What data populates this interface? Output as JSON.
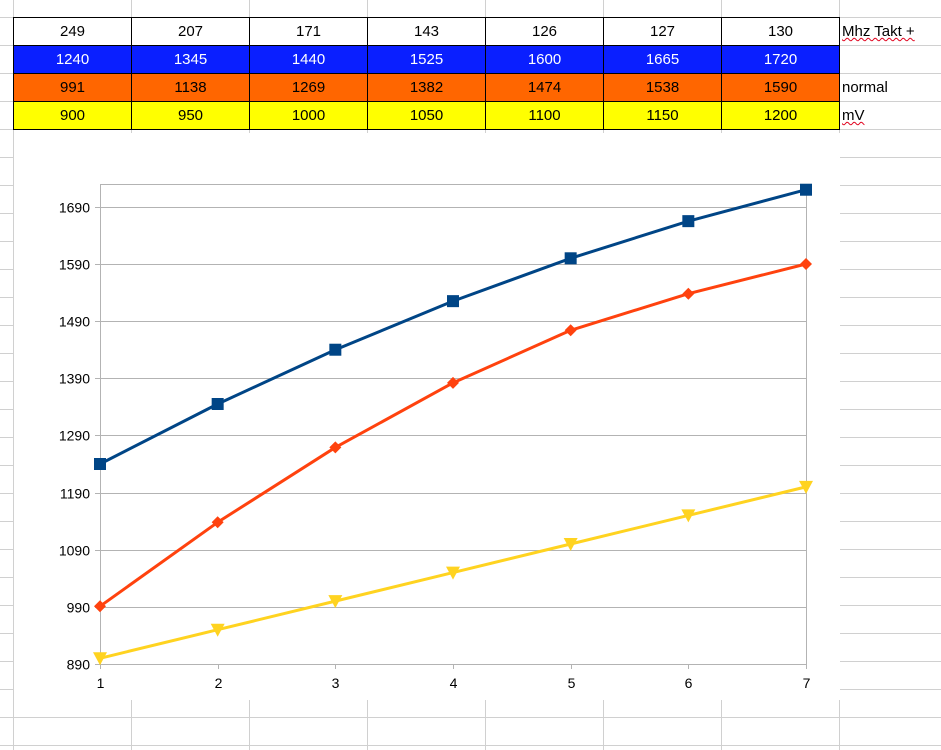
{
  "table": {
    "rows": [
      {
        "style": "white",
        "cells": [
          "249",
          "207",
          "171",
          "143",
          "126",
          "127",
          "130"
        ],
        "label": "Mhz Takt +"
      },
      {
        "style": "blue",
        "cells": [
          "1240",
          "1345",
          "1440",
          "1525",
          "1600",
          "1665",
          "1720"
        ],
        "label": ""
      },
      {
        "style": "orange",
        "cells": [
          "991",
          "1138",
          "1269",
          "1382",
          "1474",
          "1538",
          "1590"
        ],
        "label": "normal"
      },
      {
        "style": "yellow",
        "cells": [
          "900",
          "950",
          "1000",
          "1050",
          "1100",
          "1150",
          "1200"
        ],
        "label": "mV"
      }
    ]
  },
  "chart_data": {
    "type": "line",
    "x": [
      1,
      2,
      3,
      4,
      5,
      6,
      7
    ],
    "xlim": [
      1,
      7
    ],
    "ylim": [
      890,
      1730
    ],
    "y_ticks": [
      890,
      990,
      1090,
      1190,
      1290,
      1390,
      1490,
      1590,
      1690
    ],
    "x_ticks": [
      1,
      2,
      3,
      4,
      5,
      6,
      7
    ],
    "grid": "horizontal",
    "legend": "none",
    "series": [
      {
        "values": [
          1240,
          1345,
          1440,
          1525,
          1600,
          1665,
          1720
        ],
        "color": "#004586",
        "marker": "square"
      },
      {
        "values": [
          991,
          1138,
          1269,
          1382,
          1474,
          1538,
          1590
        ],
        "color": "#ff420e",
        "marker": "diamond"
      },
      {
        "values": [
          900,
          950,
          1000,
          1050,
          1100,
          1150,
          1200
        ],
        "color": "#ffd320",
        "marker": "triangle-down"
      }
    ]
  }
}
